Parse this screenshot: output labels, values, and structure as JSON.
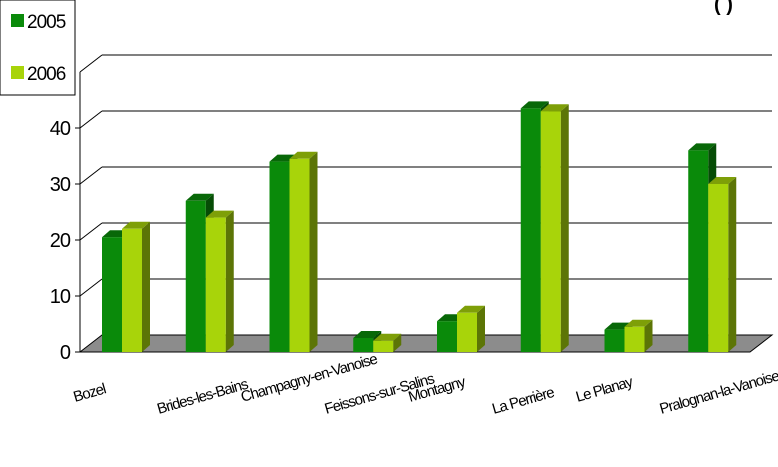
{
  "chart_data": {
    "type": "bar",
    "title": "",
    "xlabel": "",
    "ylabel": "",
    "ylim": [
      0,
      50
    ],
    "yticks": [
      0,
      10,
      20,
      30,
      40
    ],
    "grid": true,
    "legend": "top-left",
    "categories": [
      "Bozel",
      "Brides-les-Bains",
      "Champagny-en-Vanoise",
      "Feissons-sur-Salins",
      "Montagny",
      "La Perrière",
      "Le Planay",
      "Pralognan-la-Vanoise"
    ],
    "series": [
      {
        "name": "2005",
        "color": "#0a8a0a",
        "values": [
          20.5,
          27,
          34,
          2.5,
          5.5,
          43.5,
          4,
          36
        ]
      },
      {
        "name": "2006",
        "color": "#a8d40a",
        "values": [
          22,
          24,
          34.5,
          2,
          7,
          43,
          4.5,
          30
        ]
      }
    ],
    "partial_header_text": "(  )"
  }
}
